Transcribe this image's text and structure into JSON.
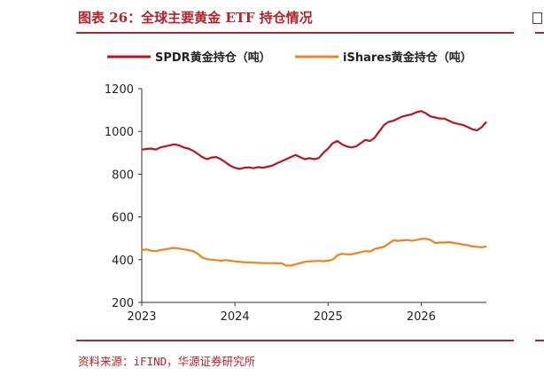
{
  "header": {
    "title": "图表 26：全球主要黄金 ETF 持仓情况"
  },
  "footer": {
    "source": "资料来源：iFIND，华源证券研究所"
  },
  "colors": {
    "accent": "#b0232a",
    "spdr": "#b8151d",
    "ishares": "#ee8220"
  },
  "chart_data": {
    "type": "line",
    "title": "",
    "xlabel": "",
    "ylabel": "",
    "ylim": [
      200,
      1200
    ],
    "yticks": [
      "200",
      "400",
      "600",
      "800",
      "1000",
      "1200"
    ],
    "xticks": [
      "2023",
      "2024",
      "2025",
      "2026"
    ],
    "grid": false,
    "legend": "top",
    "series": [
      {
        "name": "SPDR黄金持仓（吨）",
        "color": "#b8151d",
        "x": [
          2023.0,
          2023.05,
          2023.1,
          2023.15,
          2023.2,
          2023.25,
          2023.3,
          2023.35,
          2023.4,
          2023.45,
          2023.5,
          2023.55,
          2023.6,
          2023.65,
          2023.7,
          2023.75,
          2023.8,
          2023.85,
          2023.9,
          2023.95,
          2024.0,
          2024.05,
          2024.1,
          2024.15,
          2024.2,
          2024.25,
          2024.3,
          2024.35,
          2024.4,
          2024.45,
          2024.5,
          2024.55,
          2024.6,
          2024.65,
          2024.7,
          2024.75,
          2024.8,
          2024.85,
          2024.9,
          2024.95,
          2025.0,
          2025.05,
          2025.1,
          2025.15,
          2025.2,
          2025.25,
          2025.3,
          2025.35,
          2025.4,
          2025.45,
          2025.5,
          2025.55,
          2025.6,
          2025.65,
          2025.7,
          2025.75,
          2025.8,
          2025.85,
          2025.9,
          2025.95,
          2026.0,
          2026.05,
          2026.1,
          2026.15,
          2026.2,
          2026.25,
          2026.3,
          2026.35,
          2026.4,
          2026.45,
          2026.5,
          2026.55,
          2026.6,
          2026.65,
          2026.7
        ],
        "y": [
          915,
          918,
          920,
          915,
          925,
          930,
          935,
          940,
          935,
          925,
          920,
          910,
          895,
          880,
          870,
          878,
          880,
          870,
          855,
          840,
          830,
          825,
          830,
          832,
          828,
          833,
          830,
          835,
          840,
          850,
          860,
          870,
          880,
          890,
          880,
          870,
          875,
          870,
          875,
          900,
          920,
          945,
          955,
          940,
          930,
          925,
          930,
          945,
          960,
          955,
          970,
          1000,
          1030,
          1045,
          1050,
          1060,
          1070,
          1075,
          1080,
          1090,
          1095,
          1085,
          1070,
          1065,
          1060,
          1060,
          1050,
          1040,
          1035,
          1030,
          1020,
          1010,
          1005,
          1020,
          1045
        ]
      },
      {
        "name": "iShares黄金持仓（吨）",
        "color": "#ee8220",
        "x": [
          2023.0,
          2023.05,
          2023.1,
          2023.15,
          2023.2,
          2023.25,
          2023.3,
          2023.35,
          2023.4,
          2023.45,
          2023.5,
          2023.55,
          2023.6,
          2023.65,
          2023.7,
          2023.75,
          2023.8,
          2023.85,
          2023.9,
          2023.95,
          2024.0,
          2024.05,
          2024.1,
          2024.15,
          2024.2,
          2024.25,
          2024.3,
          2024.35,
          2024.4,
          2024.45,
          2024.5,
          2024.55,
          2024.6,
          2024.65,
          2024.7,
          2024.75,
          2024.8,
          2024.85,
          2024.9,
          2024.95,
          2025.0,
          2025.05,
          2025.1,
          2025.15,
          2025.2,
          2025.25,
          2025.3,
          2025.35,
          2025.4,
          2025.45,
          2025.5,
          2025.55,
          2025.6,
          2025.65,
          2025.7,
          2025.75,
          2025.8,
          2025.85,
          2025.9,
          2025.95,
          2026.0,
          2026.05,
          2026.1,
          2026.15,
          2026.2,
          2026.25,
          2026.3,
          2026.35,
          2026.4,
          2026.45,
          2026.5,
          2026.55,
          2026.6,
          2026.65,
          2026.7
        ],
        "y": [
          445,
          448,
          442,
          440,
          445,
          448,
          452,
          455,
          452,
          448,
          445,
          440,
          428,
          410,
          402,
          400,
          398,
          395,
          398,
          395,
          392,
          390,
          388,
          387,
          386,
          385,
          384,
          384,
          384,
          383,
          383,
          372,
          372,
          378,
          384,
          390,
          392,
          393,
          394,
          393,
          395,
          400,
          420,
          428,
          425,
          425,
          430,
          435,
          440,
          438,
          450,
          455,
          460,
          475,
          490,
          488,
          490,
          492,
          488,
          492,
          497,
          498,
          492,
          478,
          480,
          480,
          482,
          478,
          475,
          470,
          468,
          462,
          460,
          458,
          462
        ]
      }
    ]
  }
}
